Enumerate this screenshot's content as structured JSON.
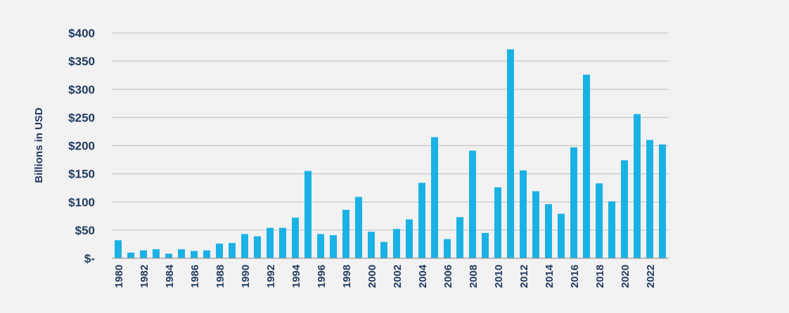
{
  "chart_data": {
    "type": "bar",
    "title": "",
    "xlabel": "",
    "ylabel": "Billions in USD",
    "ylim": [
      0,
      400
    ],
    "grid": true,
    "bar_color": "#1ab2e5",
    "text_color": "#1f3a5f",
    "background": "#f2f2f2",
    "y_ticks": [
      {
        "value": 0,
        "label": "$-"
      },
      {
        "value": 50,
        "label": "$50"
      },
      {
        "value": 100,
        "label": "$100"
      },
      {
        "value": 150,
        "label": "$150"
      },
      {
        "value": 200,
        "label": "$200"
      },
      {
        "value": 250,
        "label": "$250"
      },
      {
        "value": 300,
        "label": "$300"
      },
      {
        "value": 350,
        "label": "$350"
      },
      {
        "value": 400,
        "label": "$400"
      }
    ],
    "x_tick_labels": [
      "1980",
      "1982",
      "1984",
      "1986",
      "1988",
      "1990",
      "1992",
      "1994",
      "1996",
      "1998",
      "2000",
      "2002",
      "2004",
      "2006",
      "2008",
      "2010",
      "2012",
      "2014",
      "2016",
      "2018",
      "2020",
      "2022"
    ],
    "categories": [
      "1980",
      "1981",
      "1982",
      "1983",
      "1984",
      "1985",
      "1986",
      "1987",
      "1988",
      "1989",
      "1990",
      "1991",
      "1992",
      "1993",
      "1994",
      "1995",
      "1996",
      "1997",
      "1998",
      "1999",
      "2000",
      "2001",
      "2002",
      "2003",
      "2004",
      "2005",
      "2006",
      "2007",
      "2008",
      "2009",
      "2010",
      "2011",
      "2012",
      "2013",
      "2014",
      "2015",
      "2016",
      "2017",
      "2018",
      "2019",
      "2020",
      "2021",
      "2022",
      "2023"
    ],
    "values": [
      32,
      10,
      14,
      16,
      8,
      16,
      13,
      14,
      26,
      27,
      43,
      39,
      54,
      54,
      72,
      155,
      43,
      41,
      86,
      109,
      47,
      29,
      52,
      69,
      134,
      215,
      34,
      73,
      191,
      45,
      126,
      371,
      156,
      119,
      96,
      79,
      197,
      326,
      133,
      101,
      174,
      256,
      210,
      202
    ]
  }
}
